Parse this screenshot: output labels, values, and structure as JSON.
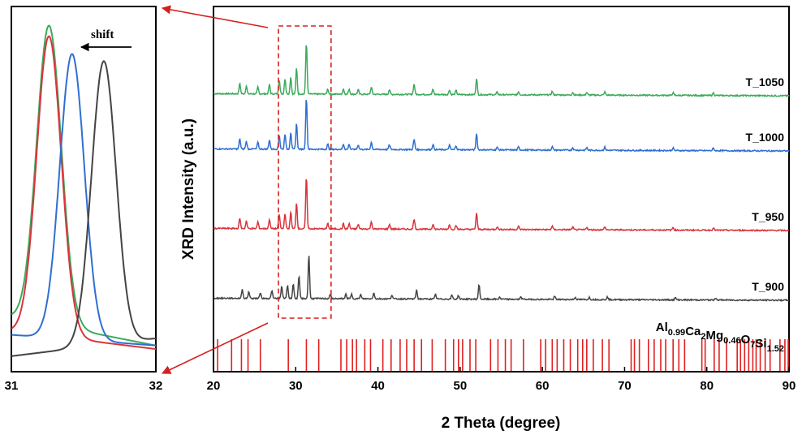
{
  "chart_data": [
    {
      "type": "line",
      "panel": "main",
      "xlabel": "2 Theta (degree)",
      "ylabel": "XRD Intensity (a.u.)",
      "xlim": [
        20,
        90
      ],
      "xticks": [
        20,
        30,
        40,
        50,
        60,
        70,
        80,
        90
      ],
      "grid": false,
      "peaks": [
        {
          "x": 23.2,
          "h": 0.2
        },
        {
          "x": 24.0,
          "h": 0.15
        },
        {
          "x": 25.4,
          "h": 0.13
        },
        {
          "x": 26.8,
          "h": 0.18
        },
        {
          "x": 28.0,
          "h": 0.28
        },
        {
          "x": 28.7,
          "h": 0.3
        },
        {
          "x": 29.4,
          "h": 0.33
        },
        {
          "x": 30.1,
          "h": 0.5
        },
        {
          "x": 31.3,
          "h": 1.0
        },
        {
          "x": 33.9,
          "h": 0.1
        },
        {
          "x": 35.8,
          "h": 0.1
        },
        {
          "x": 36.5,
          "h": 0.1
        },
        {
          "x": 37.6,
          "h": 0.09
        },
        {
          "x": 39.2,
          "h": 0.14
        },
        {
          "x": 41.4,
          "h": 0.09
        },
        {
          "x": 44.4,
          "h": 0.2
        },
        {
          "x": 46.7,
          "h": 0.1
        },
        {
          "x": 48.7,
          "h": 0.09
        },
        {
          "x": 49.5,
          "h": 0.08
        },
        {
          "x": 52.0,
          "h": 0.32
        },
        {
          "x": 54.5,
          "h": 0.05
        },
        {
          "x": 57.1,
          "h": 0.06
        },
        {
          "x": 61.2,
          "h": 0.07
        },
        {
          "x": 63.7,
          "h": 0.05
        },
        {
          "x": 65.4,
          "h": 0.05
        },
        {
          "x": 67.6,
          "h": 0.06
        },
        {
          "x": 75.9,
          "h": 0.05
        },
        {
          "x": 80.8,
          "h": 0.05
        }
      ],
      "series": [
        {
          "name": "T_1050",
          "color": "#3daa5c",
          "shift": 0.0,
          "amp": 1.0,
          "offset": 3
        },
        {
          "name": "T_1000",
          "color": "#2f6fd0",
          "shift": 0.0,
          "amp": 1.0,
          "offset": 2
        },
        {
          "name": "T_950",
          "color": "#d9343c",
          "shift": 0.0,
          "amp": 1.0,
          "offset": 1
        },
        {
          "name": "T_900",
          "color": "#444444",
          "shift": 0.3,
          "amp": 0.85,
          "offset": 0
        }
      ],
      "reference": {
        "formula": {
          "parts": [
            {
              "text": "Al",
              "sub": "0.99"
            },
            {
              "text": "Ca",
              "sub": "2"
            },
            {
              "text": "Mg",
              "sub": "0.46"
            },
            {
              "text": "O",
              "sub": "7"
            },
            {
              "text": "Si",
              "sub": "1.52"
            }
          ]
        },
        "color": "#e02020",
        "lines": [
          20.5,
          22.2,
          23.4,
          24.2,
          25.7,
          29.1,
          31.3,
          32.8,
          35.5,
          36.2,
          36.9,
          37.4,
          38.4,
          39.1,
          40.6,
          41.6,
          42.7,
          43.5,
          44.4,
          45.3,
          46.6,
          48.2,
          49.2,
          49.8,
          50.3,
          51.2,
          51.9,
          53.7,
          54.6,
          55.5,
          56.2,
          57.7,
          59.8,
          60.4,
          61.2,
          61.8,
          62.6,
          63.4,
          64.3,
          64.9,
          65.4,
          66.2,
          67.3,
          68.1,
          70.8,
          71.2,
          71.8,
          72.9,
          73.6,
          74.4,
          75.0,
          75.9,
          76.6,
          77.3,
          79.4,
          79.8,
          80.9,
          81.5,
          82.4,
          83.7,
          84.1,
          84.6,
          85.1,
          85.6,
          86.0,
          86.5,
          87.1,
          87.7,
          88.9,
          89.5,
          89.9
        ]
      },
      "highlight_box": {
        "x_from": 27.9,
        "x_to": 34.3
      }
    },
    {
      "type": "line",
      "panel": "inset",
      "xlim": [
        31,
        32
      ],
      "xticks": [
        31,
        32
      ],
      "annotation": "shift",
      "series": [
        {
          "name": "T_1050",
          "color": "#3daa5c",
          "center": 31.26,
          "height": 0.96,
          "width": 0.085,
          "base_left": 0.14,
          "base_right": 0.06
        },
        {
          "name": "T_950",
          "color": "#d9343c",
          "center": 31.26,
          "height": 0.93,
          "width": 0.085,
          "base_left": 0.1,
          "base_right": 0.05
        },
        {
          "name": "T_1000",
          "color": "#2f6fd0",
          "center": 31.42,
          "height": 0.88,
          "width": 0.085,
          "base_left": 0.09,
          "base_right": 0.06
        },
        {
          "name": "T_900",
          "color": "#444444",
          "center": 31.64,
          "height": 0.86,
          "width": 0.085,
          "base_left": 0.03,
          "base_right": 0.08
        }
      ]
    }
  ]
}
